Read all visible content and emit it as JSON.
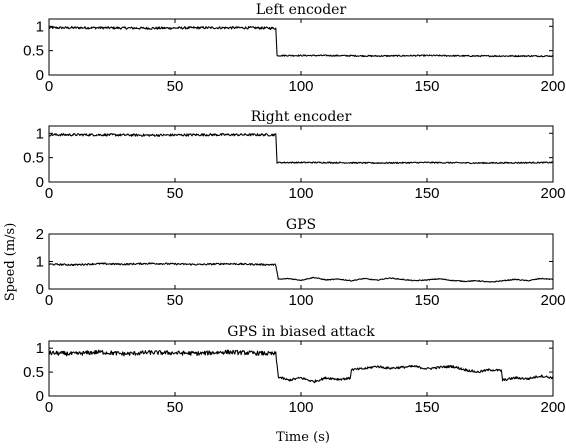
{
  "figure": {
    "ylabel": "Speed (m/s)",
    "xlabel": "Time (s)"
  },
  "chart_data": [
    {
      "type": "line",
      "title": "Left encoder",
      "xlim": [
        0,
        200
      ],
      "ylim": [
        0,
        1.15
      ],
      "xticks": [
        0,
        50,
        100,
        150,
        200
      ],
      "yticks": [
        0,
        0.5,
        1
      ],
      "ytick_labels": [
        "0",
        "0.5",
        "1"
      ],
      "series": [
        {
          "x": [
            0,
            20,
            40,
            60,
            80,
            90,
            90.5,
            110,
            130,
            150,
            170,
            200
          ],
          "y": [
            0.97,
            0.97,
            0.96,
            0.97,
            0.97,
            0.96,
            0.4,
            0.4,
            0.39,
            0.4,
            0.39,
            0.39
          ],
          "noise": 0.05
        }
      ]
    },
    {
      "type": "line",
      "title": "Right encoder",
      "xlim": [
        0,
        200
      ],
      "ylim": [
        0,
        1.15
      ],
      "xticks": [
        0,
        50,
        100,
        150,
        200
      ],
      "yticks": [
        0,
        0.5,
        1
      ],
      "ytick_labels": [
        "0",
        "0.5",
        "1"
      ],
      "series": [
        {
          "x": [
            0,
            20,
            40,
            60,
            80,
            90,
            90.5,
            110,
            130,
            150,
            170,
            200
          ],
          "y": [
            0.97,
            0.97,
            0.96,
            0.97,
            0.97,
            0.97,
            0.4,
            0.4,
            0.39,
            0.4,
            0.39,
            0.4
          ],
          "noise": 0.05
        }
      ]
    },
    {
      "type": "line",
      "title": "GPS",
      "xlim": [
        0,
        200
      ],
      "ylim": [
        0,
        2
      ],
      "xticks": [
        0,
        50,
        100,
        150,
        200
      ],
      "yticks": [
        0,
        1,
        2
      ],
      "ytick_labels": [
        "0",
        "1",
        "2"
      ],
      "series": [
        {
          "x": [
            0,
            10,
            20,
            30,
            40,
            50,
            60,
            70,
            80,
            90,
            91,
            95,
            100,
            105,
            110,
            115,
            120,
            125,
            130,
            135,
            140,
            145,
            150,
            155,
            160,
            165,
            170,
            175,
            180,
            185,
            190,
            195,
            200
          ],
          "y": [
            0.9,
            0.88,
            0.92,
            0.9,
            0.93,
            0.91,
            0.89,
            0.92,
            0.9,
            0.88,
            0.35,
            0.38,
            0.32,
            0.42,
            0.33,
            0.36,
            0.3,
            0.38,
            0.32,
            0.4,
            0.35,
            0.3,
            0.33,
            0.37,
            0.31,
            0.28,
            0.3,
            0.25,
            0.3,
            0.35,
            0.3,
            0.38,
            0.35
          ],
          "noise": 0.06
        }
      ]
    },
    {
      "type": "line",
      "title": "GPS in biased attack",
      "xlim": [
        0,
        200
      ],
      "ylim": [
        0,
        1.15
      ],
      "xticks": [
        0,
        50,
        100,
        150,
        200
      ],
      "yticks": [
        0,
        0.5,
        1
      ],
      "ytick_labels": [
        "0",
        "0.5",
        "1"
      ],
      "series": [
        {
          "x": [
            0,
            10,
            20,
            30,
            40,
            50,
            60,
            70,
            80,
            90,
            91,
            95,
            100,
            105,
            110,
            115,
            119.5,
            120,
            125,
            130,
            135,
            140,
            145,
            150,
            155,
            160,
            165,
            170,
            175,
            179.5,
            180,
            185,
            190,
            195,
            200
          ],
          "y": [
            0.9,
            0.88,
            0.92,
            0.88,
            0.91,
            0.9,
            0.89,
            0.92,
            0.9,
            0.88,
            0.4,
            0.33,
            0.38,
            0.3,
            0.38,
            0.35,
            0.37,
            0.55,
            0.57,
            0.62,
            0.58,
            0.6,
            0.62,
            0.57,
            0.6,
            0.62,
            0.55,
            0.5,
            0.55,
            0.53,
            0.33,
            0.38,
            0.36,
            0.42,
            0.38
          ],
          "noise": 0.09
        }
      ]
    }
  ]
}
